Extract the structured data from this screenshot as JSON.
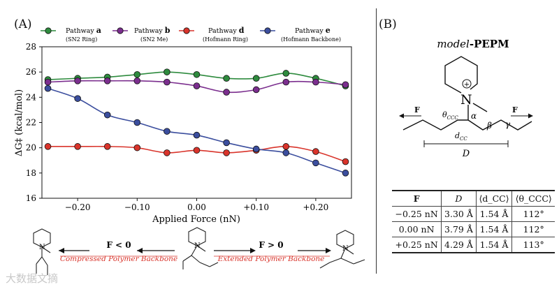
{
  "panel_a": {
    "label": "(A)"
  },
  "panel_b": {
    "label": "(B)"
  },
  "chart_data": {
    "type": "line",
    "xlabel": "Applied Force (nN)",
    "ylabel": "ΔG‡ (kcal/mol)",
    "xlim": [
      -0.26,
      0.26
    ],
    "ylim": [
      16,
      28
    ],
    "xticks": [
      -0.2,
      -0.1,
      0.0,
      0.1,
      0.2
    ],
    "xtick_labels": [
      "−0.20",
      "−0.10",
      "0.00",
      "+0.10",
      "+0.20"
    ],
    "yticks": [
      16,
      18,
      20,
      22,
      24,
      26,
      28
    ],
    "ytick_labels": [
      "16",
      "18",
      "20",
      "22",
      "24",
      "26",
      "28"
    ],
    "x": [
      -0.25,
      -0.2,
      -0.15,
      -0.1,
      -0.05,
      0.0,
      0.05,
      0.1,
      0.15,
      0.2,
      0.25
    ],
    "series": [
      {
        "name": "Pathway a",
        "sub": "(SN2 Ring)",
        "color": "#2e8b3e",
        "marker": "#2e8b3e",
        "values": [
          25.4,
          25.5,
          25.6,
          25.8,
          26.0,
          25.8,
          25.5,
          25.5,
          25.9,
          25.5,
          24.9
        ]
      },
      {
        "name": "Pathway b",
        "sub": "(SN2 Me)",
        "color": "#7b2e8e",
        "marker": "#7b2e8e",
        "values": [
          25.2,
          25.3,
          25.3,
          25.3,
          25.2,
          24.9,
          24.4,
          24.6,
          25.2,
          25.2,
          25.0
        ]
      },
      {
        "name": "Pathway d",
        "sub": "(Hofmann Ring)",
        "color": "#d9342b",
        "marker": "#d9342b",
        "values": [
          20.1,
          20.1,
          20.1,
          20.0,
          19.6,
          19.8,
          19.6,
          19.8,
          20.1,
          19.7,
          18.9
        ]
      },
      {
        "name": "Pathway e",
        "sub": "(Hofmann Backbone)",
        "color": "#3b4e9e",
        "marker": "#3b4e9e",
        "values": [
          24.7,
          23.9,
          22.6,
          22.0,
          21.3,
          21.0,
          20.4,
          19.9,
          19.6,
          18.8,
          18.0
        ]
      }
    ]
  },
  "legend": [
    {
      "name": "Pathway",
      "bold": "a",
      "sub": "(SN2 Ring)",
      "color": "#2e8b3e"
    },
    {
      "name": "Pathway",
      "bold": "b",
      "sub": "(SN2 Me)",
      "color": "#7b2e8e"
    },
    {
      "name": "Pathway",
      "bold": "d",
      "sub": "(Hofmann Ring)",
      "color": "#d9342b"
    },
    {
      "name": "Pathway",
      "bold": "e",
      "sub": "(Hofmann Backbone)",
      "color": "#3b4e9e"
    }
  ],
  "scheme": {
    "left_force": "F < 0",
    "left_caption": "Compressed Polymer Backbone",
    "right_force": "F > 0",
    "right_caption": "Extended Polymer Backbone",
    "caption_color": "#d9342b"
  },
  "molecule": {
    "title_italic": "model",
    "title_bold": "-PEPM",
    "atom_n": "N",
    "charge": "+",
    "force_label": "F",
    "theta_label": "θ",
    "theta_sub": "CCC",
    "d_label": "d",
    "d_sub": "CC",
    "alpha": "α",
    "beta": "β",
    "gamma": "γ",
    "length_label": "D"
  },
  "table": {
    "headers": [
      "F",
      "D",
      "⟨d_CC⟩",
      "⟨θ_CCC⟩"
    ],
    "rows": [
      [
        "−0.25 nN",
        "3.30 Å",
        "1.54 Å",
        "112°"
      ],
      [
        "0.00 nN",
        "3.79 Å",
        "1.54 Å",
        "112°"
      ],
      [
        "+0.25 nN",
        "4.29 Å",
        "1.54 Å",
        "113°"
      ]
    ]
  },
  "watermark": "大数据文摘"
}
